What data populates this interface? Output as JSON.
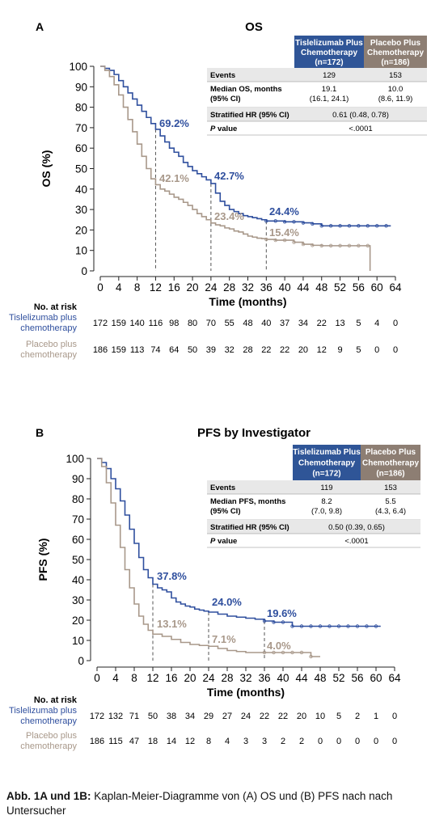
{
  "colors": {
    "tislelizumab": "#2f4f9e",
    "placebo": "#a8988a",
    "table_blue_header": "#2f5597",
    "table_gray_header": "#8d7e73",
    "row_shade": "#e8e8e8",
    "axis": "#222222"
  },
  "caption": {
    "lead": "Abb. 1A und 1B:",
    "text": " Kaplan-Meier-Diagramme von (A) OS und (B) PFS nach nach Untersucher"
  },
  "chart_data": [
    {
      "type": "line",
      "panel_label": "A",
      "title": "OS",
      "xlabel": "Time (months)",
      "ylabel": "OS (%)",
      "xlim": [
        0,
        64
      ],
      "ylim": [
        0,
        100
      ],
      "xticks": [
        0,
        4,
        8,
        12,
        16,
        20,
        24,
        28,
        32,
        36,
        40,
        44,
        48,
        52,
        56,
        60,
        64
      ],
      "yticks": [
        0,
        10,
        20,
        30,
        40,
        50,
        60,
        70,
        80,
        90,
        100
      ],
      "grid": false,
      "series": [
        {
          "name": "Tislelizumab Plus Chemotherapy",
          "x": [
            0,
            1,
            2,
            3,
            4,
            5,
            6,
            7,
            8,
            9,
            10,
            11,
            12,
            13,
            14,
            15,
            16,
            17,
            18,
            19,
            20,
            21,
            22,
            23,
            24,
            25,
            26,
            27,
            28,
            29,
            30,
            31,
            32,
            33,
            34,
            35,
            36,
            38,
            40,
            42,
            44,
            46,
            48,
            50,
            52,
            54,
            56,
            58,
            60,
            62,
            63
          ],
          "y": [
            100,
            99,
            98,
            96,
            93,
            90,
            87,
            84,
            81,
            78,
            75,
            72,
            69.2,
            66,
            63,
            60,
            58,
            56,
            53,
            51,
            49,
            47.5,
            46,
            44.5,
            42.7,
            38,
            34,
            32,
            30,
            29,
            28,
            27,
            26.5,
            26,
            25.5,
            25,
            24.4,
            24.4,
            24,
            24,
            23.5,
            23,
            22,
            22,
            22,
            22,
            22,
            22,
            22,
            22,
            22
          ]
        },
        {
          "name": "Placebo Plus Chemotherapy",
          "x": [
            0,
            1,
            2,
            3,
            4,
            5,
            6,
            7,
            8,
            9,
            10,
            11,
            12,
            13,
            14,
            15,
            16,
            17,
            18,
            19,
            20,
            21,
            22,
            23,
            24,
            25,
            26,
            27,
            28,
            29,
            30,
            31,
            32,
            33,
            34,
            35,
            36,
            38,
            40,
            42,
            44,
            46,
            48,
            50,
            52,
            54,
            56,
            58,
            58.5
          ],
          "y": [
            100,
            98,
            95,
            91,
            86,
            80,
            74,
            68,
            62,
            56,
            50,
            45,
            42.1,
            40,
            39,
            37.5,
            36,
            35,
            33.5,
            32,
            30,
            28,
            26.5,
            25,
            23.4,
            22.5,
            22,
            21,
            20.5,
            19.5,
            19,
            18,
            17,
            16.5,
            16,
            15.8,
            15.4,
            15,
            15,
            14,
            13,
            12.5,
            12.3,
            12.3,
            12.3,
            12.3,
            12.3,
            12.3,
            0
          ]
        }
      ],
      "landmark_x": [
        12,
        24,
        36
      ],
      "annotations": {
        "tis": [
          "69.2%",
          "42.7%",
          "24.4%"
        ],
        "pbo": [
          "42.1%",
          "23.4%",
          "15.4%"
        ]
      },
      "table": {
        "header_tis": [
          "Tislelizumab Plus",
          "Chemotherapy",
          "(n=172)"
        ],
        "header_pbo": [
          "Placebo Plus",
          "Chemotherapy",
          "(n=186)"
        ],
        "rows": [
          {
            "label": [
              "Events"
            ],
            "tis": [
              "129"
            ],
            "pbo": [
              "153"
            ],
            "shaded": true
          },
          {
            "label": [
              "Median OS, months",
              "(95% CI)"
            ],
            "tis": [
              "19.1",
              "(16.1, 24.1)"
            ],
            "pbo": [
              "10.0",
              "(8.6, 11.9)"
            ],
            "shaded": false
          },
          {
            "label": [
              "Stratified HR (95% CI)"
            ],
            "merged": "0.61 (0.48, 0.78)",
            "shaded": true
          },
          {
            "label_italic": "P",
            "label_rest": " value",
            "merged": "<.0001",
            "shaded": false
          }
        ]
      },
      "risk": {
        "title": "No. at risk",
        "tis_label": [
          "Tislelizumab plus",
          "chemotherapy"
        ],
        "pbo_label": [
          "Placebo plus",
          "chemotherapy"
        ],
        "tis": [
          "172",
          "159",
          "140",
          "116",
          "98",
          "80",
          "70",
          "55",
          "48",
          "40",
          "37",
          "34",
          "22",
          "13",
          "5",
          "4",
          "0"
        ],
        "pbo": [
          "186",
          "159",
          "113",
          "74",
          "64",
          "50",
          "39",
          "32",
          "28",
          "22",
          "22",
          "20",
          "12",
          "9",
          "5",
          "0",
          "0"
        ]
      }
    },
    {
      "type": "line",
      "panel_label": "B",
      "title": "PFS by Investigator",
      "xlabel": "Time (months)",
      "ylabel": "PFS (%)",
      "xlim": [
        0,
        64
      ],
      "ylim": [
        0,
        100
      ],
      "xticks": [
        0,
        4,
        8,
        12,
        16,
        20,
        24,
        28,
        32,
        36,
        40,
        44,
        48,
        52,
        56,
        60,
        64
      ],
      "yticks": [
        0,
        10,
        20,
        30,
        40,
        50,
        60,
        70,
        80,
        90,
        100
      ],
      "grid": false,
      "series": [
        {
          "name": "Tislelizumab Plus Chemotherapy",
          "x": [
            0,
            1,
            2,
            3,
            4,
            5,
            6,
            7,
            8,
            9,
            10,
            11,
            12,
            13,
            14,
            15,
            16,
            17,
            18,
            19,
            20,
            21,
            22,
            23,
            24,
            26,
            28,
            30,
            32,
            34,
            36,
            38,
            40,
            42,
            44,
            46,
            48,
            50,
            52,
            54,
            56,
            58,
            60,
            61
          ],
          "y": [
            100,
            98,
            95,
            90,
            85,
            79,
            72,
            65,
            58,
            51,
            45,
            41,
            37.8,
            36,
            35,
            34,
            31,
            29,
            28,
            27,
            26.5,
            25.5,
            25,
            24.5,
            24,
            23,
            22,
            21.5,
            21,
            20.5,
            19.6,
            19,
            19,
            17,
            17,
            17,
            17,
            17,
            17,
            17,
            17,
            17,
            17,
            17
          ]
        },
        {
          "name": "Placebo Plus Chemotherapy",
          "x": [
            0,
            1,
            2,
            3,
            4,
            5,
            6,
            7,
            8,
            9,
            10,
            11,
            12,
            14,
            16,
            18,
            20,
            22,
            24,
            26,
            28,
            30,
            32,
            34,
            36,
            38,
            40,
            42,
            44,
            46,
            48
          ],
          "y": [
            100,
            96,
            88,
            78,
            67,
            56,
            45,
            36,
            28,
            22,
            18,
            15,
            13.1,
            12,
            10.5,
            9,
            8,
            7.5,
            7.1,
            6,
            5,
            4.5,
            4,
            4,
            4.0,
            4,
            4,
            4,
            4,
            2,
            2
          ]
        }
      ],
      "landmark_x": [
        12,
        24,
        36
      ],
      "annotations": {
        "tis": [
          "37.8%",
          "24.0%",
          "19.6%"
        ],
        "pbo": [
          "13.1%",
          "7.1%",
          "4.0%"
        ]
      },
      "table": {
        "header_tis": [
          "Tislelizumab Plus",
          "Chemotherapy",
          "(n=172)"
        ],
        "header_pbo": [
          "Placebo Plus",
          "Chemotherapy",
          "(n=186)"
        ],
        "rows": [
          {
            "label": [
              "Events"
            ],
            "tis": [
              "119"
            ],
            "pbo": [
              "153"
            ],
            "shaded": true
          },
          {
            "label": [
              "Median PFS, months",
              "(95% CI)"
            ],
            "tis": [
              "8.2",
              "(7.0, 9.8)"
            ],
            "pbo": [
              "5.5",
              "(4.3, 6.4)"
            ],
            "shaded": false
          },
          {
            "label": [
              "Stratified HR (95% CI)"
            ],
            "merged": "0.50 (0.39, 0.65)",
            "shaded": true
          },
          {
            "label_italic": "P",
            "label_rest": " value",
            "merged": "<.0001",
            "shaded": false
          }
        ]
      },
      "risk": {
        "title": "No. at risk",
        "tis_label": [
          "Tislelizumab plus",
          "chemotherapy"
        ],
        "pbo_label": [
          "Placebo plus",
          "chemotherapy"
        ],
        "tis": [
          "172",
          "132",
          "71",
          "50",
          "38",
          "34",
          "29",
          "27",
          "24",
          "22",
          "22",
          "20",
          "10",
          "5",
          "2",
          "1",
          "0"
        ],
        "pbo": [
          "186",
          "115",
          "47",
          "18",
          "14",
          "12",
          "8",
          "4",
          "3",
          "3",
          "2",
          "2",
          "0",
          "0",
          "0",
          "0",
          "0"
        ]
      }
    }
  ]
}
